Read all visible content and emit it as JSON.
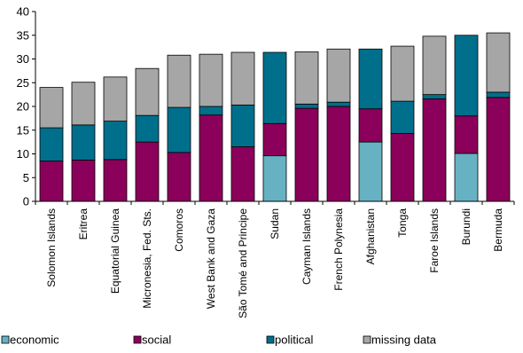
{
  "chart_data": {
    "type": "bar",
    "stacked": true,
    "categories": [
      "Solomon Islands",
      "Eritrea",
      "Equatorial Guinea",
      "Micronesia, Fed. Sts.",
      "Comoros",
      "West Bank and Gaza",
      "São Tomé and Principe",
      "Sudan",
      "Cayman Islands",
      "French Polynesia",
      "Afghanistan",
      "Tonga",
      "Faroe Islands",
      "Burundi",
      "Bermuda"
    ],
    "series": [
      {
        "name": "economic",
        "color": "#66B2C3",
        "values": [
          0,
          0,
          0,
          0,
          0,
          0,
          0,
          9.6,
          0,
          0,
          12.5,
          0,
          0,
          10.1,
          0
        ]
      },
      {
        "name": "social",
        "color": "#8B005A",
        "values": [
          8.5,
          8.7,
          8.8,
          12.5,
          10.3,
          18.2,
          11.5,
          6.8,
          19.6,
          20.0,
          7.0,
          14.3,
          21.6,
          7.9,
          21.9
        ]
      },
      {
        "name": "political",
        "color": "#006F8C",
        "values": [
          7.0,
          7.4,
          8.1,
          5.6,
          9.5,
          1.8,
          8.8,
          15.0,
          0.9,
          0.9,
          12.6,
          6.8,
          0.9,
          17.0,
          1.1
        ]
      },
      {
        "name": "missing data",
        "color": "#A6A6A6",
        "values": [
          8.5,
          9.0,
          9.3,
          9.9,
          11.0,
          11.0,
          11.1,
          0,
          11.0,
          11.2,
          0,
          11.6,
          12.3,
          0,
          12.5
        ]
      }
    ],
    "y_ticks": [
      "0",
      "5",
      "10",
      "15",
      "20",
      "25",
      "30",
      "35",
      "40"
    ],
    "ylim": [
      0,
      40
    ],
    "grid": false,
    "legend_position": "bottom"
  }
}
